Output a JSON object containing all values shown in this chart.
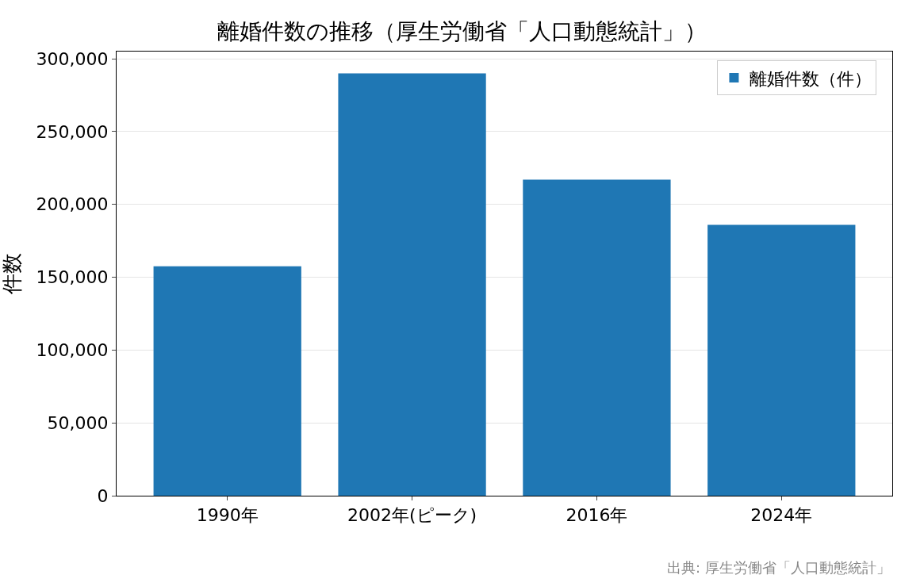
{
  "chart_data": {
    "type": "bar",
    "title": "離婚件数の推移（厚生労働省「人口動態統計」）",
    "ylabel": "件数",
    "categories": [
      "1990年",
      "2002年(ピーク)",
      "2016年",
      "2024年"
    ],
    "series": [
      {
        "name": "離婚件数（件）",
        "color": "#1f77b4",
        "values": [
          157600,
          290000,
          217000,
          186000
        ]
      }
    ],
    "ylim": [
      0,
      305000
    ],
    "yticks": [
      {
        "value": 0,
        "label": "0"
      },
      {
        "value": 50000,
        "label": "50,000"
      },
      {
        "value": 100000,
        "label": "100,000"
      },
      {
        "value": 150000,
        "label": "150,000"
      },
      {
        "value": 200000,
        "label": "200,000"
      },
      {
        "value": 250000,
        "label": "250,000"
      },
      {
        "value": 300000,
        "label": "300,000"
      }
    ],
    "grid": "y",
    "legend": "top right",
    "annotations": [
      "出典: 厚生労働省「人口動態統計」"
    ]
  }
}
